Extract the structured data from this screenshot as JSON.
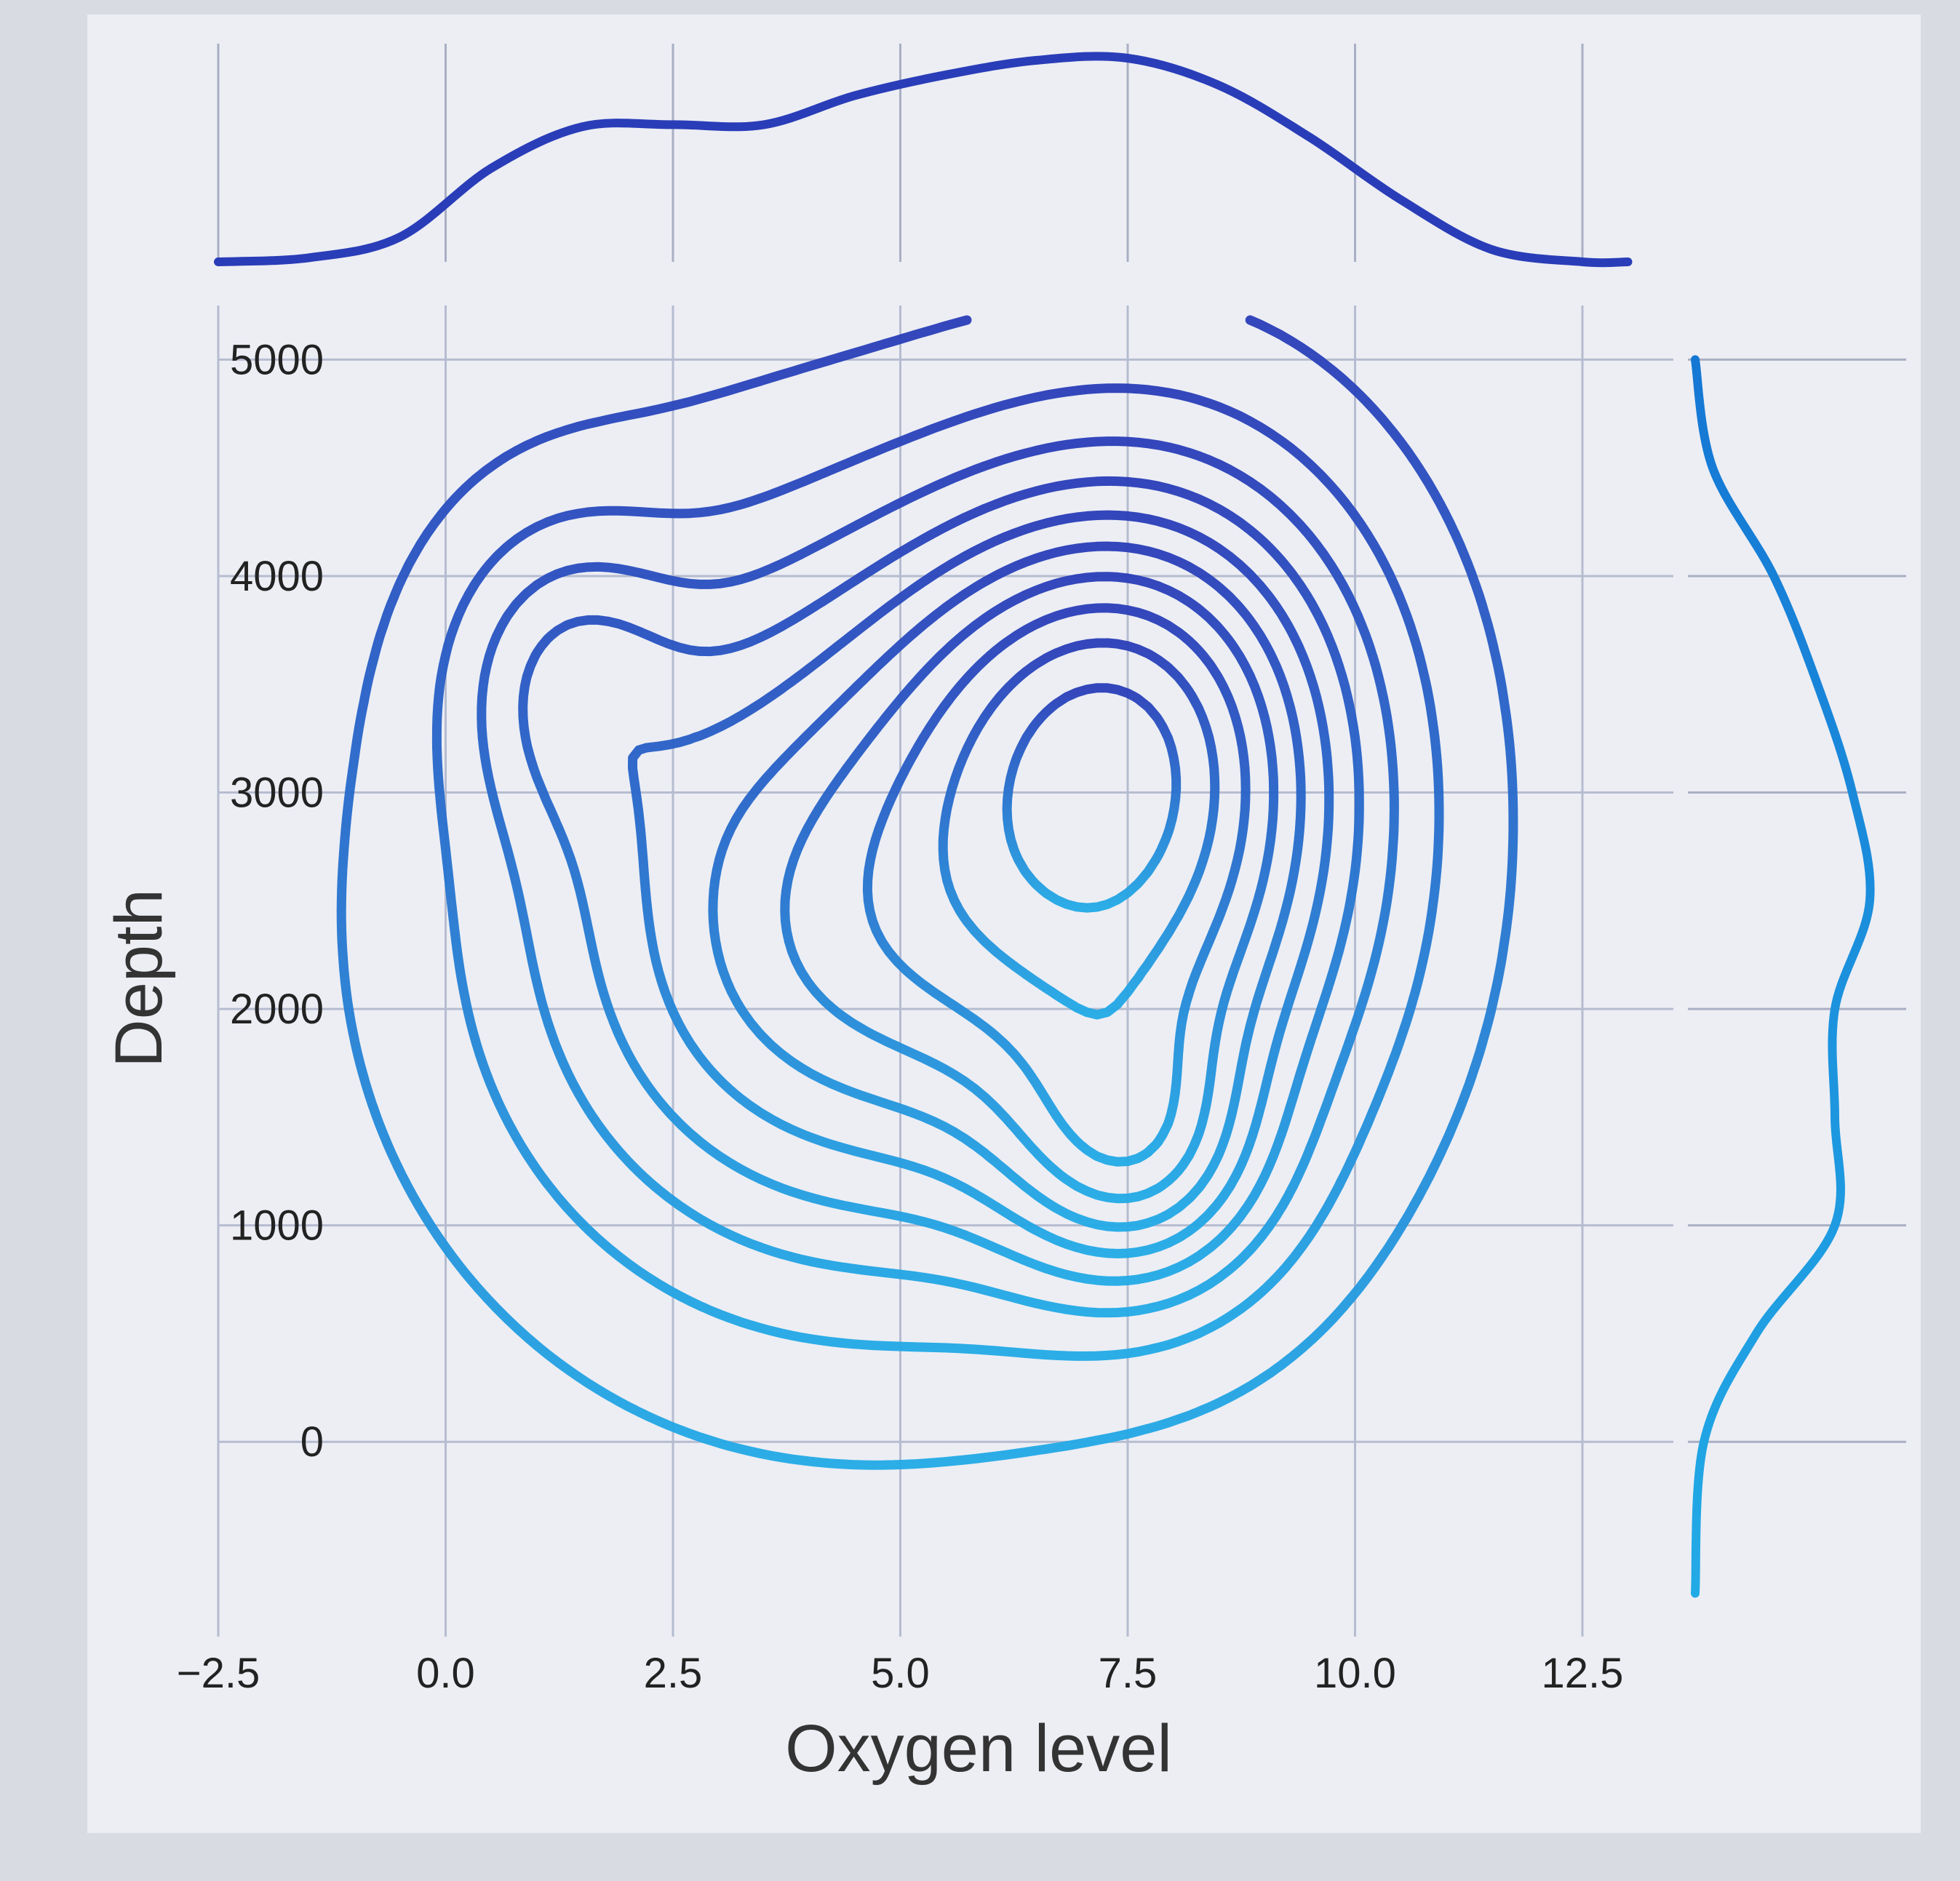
{
  "chart_data": {
    "type": "kde-joint",
    "title": "",
    "xlabel": "Oxygen level",
    "ylabel": "Depth",
    "xlim": [
      -2.5,
      13.5
    ],
    "ylim": [
      -900,
      5250
    ],
    "x_ticks": [
      -2.5,
      0.0,
      2.5,
      5.0,
      7.5,
      10.0,
      12.5
    ],
    "x_tick_labels": [
      "−2.5",
      "0.0",
      "2.5",
      "5.0",
      "7.5",
      "10.0",
      "12.5"
    ],
    "y_ticks": [
      0,
      1000,
      2000,
      3000,
      4000,
      5000
    ],
    "y_tick_labels": [
      "0",
      "1000",
      "2000",
      "3000",
      "4000",
      "5000"
    ],
    "grid": true,
    "colors": {
      "dark": "#2a3db8",
      "mid": "#1577d4",
      "light": "#22aae6"
    },
    "kde_components": [
      {
        "x": 4.5,
        "y": 2400,
        "sx": 2.6,
        "sy": 1150,
        "w": 1.0
      },
      {
        "x": 7.9,
        "y": 2900,
        "sx": 1.7,
        "sy": 1050,
        "w": 0.95
      },
      {
        "x": 7.6,
        "y": 1300,
        "sx": 1.0,
        "sy": 450,
        "w": 0.55
      },
      {
        "x": 1.3,
        "y": 3550,
        "sx": 0.9,
        "sy": 500,
        "w": 0.35
      },
      {
        "x": 7.0,
        "y": 3600,
        "sx": 1.6,
        "sy": 600,
        "w": 0.35
      }
    ],
    "contour_levels": 10,
    "marginal_x": {
      "x": [
        -2.5,
        -1.5,
        -0.5,
        0.5,
        1.5,
        2.5,
        3.5,
        4.5,
        5.5,
        6.5,
        7.5,
        8.5,
        9.5,
        10.5,
        11.5,
        12.5,
        13.0
      ],
      "density": [
        0.0,
        0.02,
        0.12,
        0.45,
        0.65,
        0.66,
        0.66,
        0.8,
        0.9,
        0.97,
        0.98,
        0.85,
        0.6,
        0.3,
        0.06,
        0.0,
        0.0
      ]
    },
    "marginal_y": {
      "y": [
        -700,
        0,
        500,
        1000,
        1500,
        2000,
        2500,
        3000,
        3500,
        4000,
        4500,
        5000
      ],
      "density": [
        0.0,
        0.05,
        0.35,
        0.8,
        0.8,
        0.8,
        1.0,
        0.9,
        0.7,
        0.45,
        0.1,
        0.0
      ]
    }
  }
}
